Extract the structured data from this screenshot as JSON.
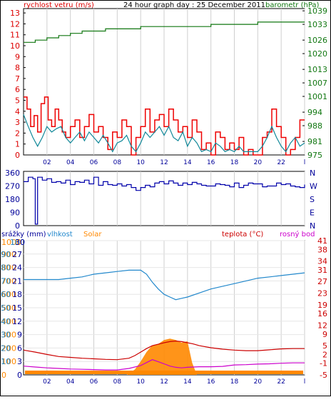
{
  "header": {
    "left_label": "rychlost vetru (m/s)",
    "title": "24 hour graph day : 25 December 2011",
    "right_label": "barometr (hPa)"
  },
  "colors": {
    "wind": "#dd0000",
    "gust": "#ee0000",
    "wind_avg": "#118899",
    "pressure": "#117711",
    "direction": "#0000aa",
    "humidity": "#2288cc",
    "solar": "#ff8800",
    "temperature": "#cc0000",
    "dewpoint": "#cc00cc",
    "rain": "#0033aa",
    "axis_dark": "#000099",
    "grid": "#cfcfcf"
  },
  "chart_data": [
    {
      "type": "line",
      "name": "wind-pressure",
      "x_ticks": [
        "02",
        "04",
        "06",
        "08",
        "10",
        "12",
        "14",
        "16",
        "18",
        "20",
        "22",
        "l"
      ],
      "left_axis": {
        "label": "rychlost vetru (m/s)",
        "ticks": [
          0,
          1,
          2,
          3,
          4,
          5,
          6,
          7,
          8,
          9,
          10,
          11,
          12,
          13
        ],
        "ylim": [
          0,
          13.4
        ]
      },
      "right_axis": {
        "label": "barometr (hPa)",
        "ticks": [
          975,
          981,
          988,
          994,
          1001,
          1007,
          1013,
          1020,
          1026,
          1033,
          1039
        ],
        "ylim": [
          975,
          1040
        ]
      },
      "series": [
        {
          "name": "rychlost vetru (m/s)",
          "role": "gust",
          "x": [
            0,
            0.3,
            0.6,
            0.9,
            1.2,
            1.5,
            1.8,
            2.1,
            2.4,
            2.7,
            3.0,
            3.3,
            3.6,
            4.0,
            4.4,
            4.8,
            5.2,
            5.6,
            6.0,
            6.4,
            6.8,
            7.2,
            7.6,
            8.0,
            8.4,
            8.8,
            9.2,
            9.6,
            10.0,
            10.4,
            10.8,
            11.2,
            11.6,
            12.0,
            12.4,
            12.8,
            13.2,
            13.6,
            14.0,
            14.4,
            14.8,
            15.2,
            15.6,
            16.0,
            16.4,
            16.8,
            17.2,
            17.6,
            18.0,
            18.4,
            18.8,
            19.2,
            19.6,
            20.0,
            20.4,
            20.8,
            21.2,
            21.6,
            22.0,
            22.4,
            22.8,
            23.2,
            23.6,
            24.0
          ],
          "values": [
            5.3,
            4.2,
            2.6,
            3.6,
            2.1,
            4.7,
            5.3,
            3.2,
            2.6,
            4.2,
            3.2,
            2.1,
            1.6,
            2.6,
            3.2,
            1.6,
            2.6,
            3.7,
            2.1,
            2.6,
            1.6,
            0.5,
            2.1,
            1.6,
            3.2,
            2.6,
            0,
            1.6,
            2.6,
            4.2,
            2.1,
            3.2,
            3.7,
            2.6,
            4.2,
            3.2,
            2.1,
            2.6,
            1.6,
            3.2,
            2.1,
            0.5,
            1.1,
            0,
            2.1,
            1.6,
            0.5,
            1.1,
            0.5,
            1.6,
            0,
            0.5,
            0,
            0,
            1.6,
            2.1,
            4.2,
            2.6,
            1.6,
            0,
            0.5,
            1.6,
            3.2,
            3.2
          ]
        },
        {
          "name": "wind average",
          "role": "average",
          "x": [
            0,
            0.4,
            0.8,
            1.2,
            1.6,
            2.0,
            2.4,
            2.8,
            3.2,
            3.6,
            4.0,
            4.4,
            4.8,
            5.2,
            5.6,
            6.0,
            6.4,
            6.8,
            7.2,
            7.6,
            8.0,
            8.4,
            8.8,
            9.2,
            9.6,
            10.0,
            10.4,
            10.8,
            11.2,
            11.6,
            12.0,
            12.4,
            12.8,
            13.2,
            13.6,
            14.0,
            14.4,
            14.8,
            15.2,
            15.6,
            16.0,
            16.4,
            16.8,
            17.2,
            17.6,
            18.0,
            18.4,
            18.8,
            19.2,
            19.6,
            20.0,
            20.4,
            20.8,
            21.2,
            21.6,
            22.0,
            22.4,
            22.8,
            23.2,
            23.6,
            24.0
          ],
          "values": [
            3.7,
            2.6,
            1.6,
            0.8,
            1.6,
            2.6,
            2.1,
            2.4,
            2.6,
            1.6,
            1.1,
            1.6,
            2.1,
            1.3,
            2.1,
            1.6,
            1.1,
            1.8,
            1.1,
            0.3,
            1.1,
            1.3,
            1.8,
            0.8,
            0.3,
            1.1,
            2.1,
            1.6,
            2.1,
            2.6,
            1.8,
            2.6,
            1.6,
            1.3,
            2.1,
            0.8,
            1.6,
            1.1,
            0.3,
            0.5,
            0.3,
            1.1,
            0.8,
            0.3,
            0.5,
            0.3,
            0.8,
            0.3,
            0.3,
            0.3,
            0.3,
            0.8,
            1.6,
            2.6,
            1.6,
            0.8,
            0.3,
            1.1,
            1.6,
            0.8,
            1.1
          ]
        },
        {
          "name": "barometr (hPa)",
          "role": "pressure",
          "axis": "right",
          "x": [
            0,
            1,
            2,
            3,
            4,
            5,
            6,
            7,
            8,
            9,
            10,
            11,
            12,
            13,
            14,
            15,
            16,
            17,
            18,
            19,
            20,
            21,
            22,
            23,
            24
          ],
          "values": [
            1025,
            1026,
            1027,
            1028,
            1029,
            1030,
            1030,
            1031,
            1031,
            1031,
            1032,
            1032,
            1032,
            1032,
            1032,
            1032,
            1033,
            1033,
            1033,
            1033,
            1034,
            1034,
            1034,
            1034,
            1034
          ]
        }
      ]
    },
    {
      "type": "line",
      "name": "wind-direction",
      "x_ticks": [
        "02",
        "04",
        "06",
        "08",
        "10",
        "12",
        "14",
        "16",
        "18",
        "20",
        "22",
        "l"
      ],
      "left_axis": {
        "ticks": [
          0,
          90,
          180,
          270,
          360
        ],
        "ylim": [
          0,
          370
        ]
      },
      "right_axis": {
        "ticks": [
          "N",
          "W",
          "S",
          "E",
          "N"
        ]
      },
      "series": [
        {
          "name": "wind direction",
          "role": "direction",
          "x": [
            0,
            0.4,
            0.8,
            1.0,
            1.2,
            1.6,
            2.0,
            2.4,
            2.8,
            3.2,
            3.6,
            4.0,
            4.4,
            4.8,
            5.2,
            5.6,
            6.0,
            6.4,
            6.8,
            7.2,
            7.6,
            8.0,
            8.4,
            8.8,
            9.2,
            9.6,
            10.0,
            10.4,
            10.8,
            11.2,
            11.6,
            12.0,
            12.4,
            12.8,
            13.2,
            13.6,
            14.0,
            14.4,
            14.8,
            15.2,
            15.6,
            16.0,
            16.4,
            16.8,
            17.2,
            17.6,
            18.0,
            18.4,
            18.8,
            19.2,
            19.6,
            20.0,
            20.4,
            20.8,
            21.2,
            21.6,
            22.0,
            22.4,
            22.8,
            23.2,
            23.6,
            24.0
          ],
          "values": [
            300,
            330,
            320,
            10,
            330,
            310,
            320,
            295,
            300,
            290,
            310,
            280,
            300,
            295,
            310,
            285,
            330,
            275,
            300,
            280,
            275,
            285,
            270,
            280,
            260,
            240,
            260,
            275,
            265,
            290,
            300,
            285,
            305,
            290,
            275,
            290,
            280,
            295,
            285,
            275,
            270,
            270,
            285,
            280,
            275,
            265,
            290,
            260,
            275,
            290,
            285,
            285,
            265,
            270,
            270,
            290,
            280,
            285,
            270,
            265,
            260,
            280
          ]
        }
      ]
    },
    {
      "type": "line",
      "name": "rain-humidity-solar-temperature",
      "x_ticks": [
        "02",
        "04",
        "06",
        "08",
        "10",
        "12",
        "14",
        "16",
        "18",
        "20",
        "22",
        "l"
      ],
      "legend": [
        "srážky (mm)",
        "vlhkost",
        "Solar",
        "teplota (°C)",
        "rosný bod"
      ],
      "axis_solar": {
        "ticks": [
          0,
          100,
          200,
          300,
          400,
          500,
          600,
          700,
          800,
          900,
          1000
        ],
        "ylim": [
          0,
          1000
        ]
      },
      "axis_rain": {
        "ticks": [
          0,
          3,
          6,
          9,
          12,
          15,
          18,
          21,
          24,
          27,
          30
        ],
        "ylim": [
          0,
          30
        ]
      },
      "axis_humidity": {
        "ticks": [
          0,
          10,
          20,
          30,
          40,
          50,
          60,
          70,
          80,
          90,
          100
        ],
        "ylim": [
          0,
          100
        ]
      },
      "axis_temperature": {
        "label": "teplota (°C)",
        "ticks": [
          -5,
          -1,
          2,
          5,
          9,
          12,
          16,
          19,
          23,
          27,
          31,
          34,
          38,
          41
        ],
        "ylim": [
          -5,
          41
        ]
      },
      "series": [
        {
          "name": "vlhkost",
          "role": "humidity",
          "x": [
            0,
            1,
            2,
            3,
            4,
            5,
            6,
            7,
            8,
            9,
            9.5,
            10,
            10.5,
            11,
            11.5,
            12,
            12.5,
            13,
            13.5,
            14,
            15,
            16,
            17,
            18,
            19,
            20,
            21,
            22,
            23,
            24
          ],
          "values": [
            71,
            71,
            71,
            71,
            72,
            73,
            75,
            76,
            77,
            78,
            78,
            78,
            75,
            69,
            64,
            60,
            58,
            56,
            57,
            58,
            61,
            64,
            66,
            68,
            70,
            72,
            73,
            74,
            75,
            76
          ]
        },
        {
          "name": "teplota (°C)",
          "role": "temperature",
          "x": [
            0,
            1,
            2,
            3,
            4,
            5,
            6,
            7,
            8,
            9,
            9.5,
            10,
            10.5,
            11,
            11.5,
            12,
            12.5,
            13,
            13.5,
            14,
            14.5,
            15,
            16,
            17,
            18,
            19,
            20,
            21,
            22,
            23,
            24
          ],
          "values": [
            3.5,
            2.8,
            2.0,
            1.3,
            1.0,
            0.7,
            0.5,
            0.3,
            0.2,
            0.7,
            1.6,
            2.8,
            4.0,
            5.0,
            5.5,
            6.0,
            6.4,
            6.6,
            6.4,
            6.0,
            5.6,
            5.0,
            4.3,
            3.8,
            3.5,
            3.3,
            3.3,
            3.6,
            3.9,
            4.0,
            4.0
          ]
        },
        {
          "name": "rosný bod",
          "role": "dewpoint",
          "x": [
            0,
            1,
            2,
            3,
            4,
            5,
            6,
            7,
            8,
            9,
            10,
            10.5,
            11,
            11.5,
            12,
            12.5,
            13,
            13.5,
            14,
            15,
            16,
            17,
            18,
            19,
            20,
            21,
            22,
            23,
            24
          ],
          "values": [
            -2.0,
            -2.3,
            -2.6,
            -2.8,
            -3.0,
            -3.1,
            -3.2,
            -3.3,
            -3.3,
            -2.8,
            -1.8,
            -0.8,
            0.2,
            -0.5,
            -1.2,
            -2.0,
            -2.4,
            -2.6,
            -2.4,
            -2.2,
            -2.2,
            -2.1,
            -1.6,
            -1.5,
            -1.3,
            -1.2,
            -1.0,
            -0.9,
            -0.9
          ]
        },
        {
          "name": "Solar",
          "role": "solar",
          "x": [
            8.8,
            9.5,
            10,
            10.5,
            11,
            11.5,
            12,
            12.5,
            13,
            13.5,
            14,
            14.4,
            14.8
          ],
          "values": [
            0,
            40,
            100,
            170,
            220,
            230,
            260,
            270,
            260,
            240,
            250,
            90,
            0
          ]
        },
        {
          "name": "srážky (mm)",
          "role": "rain",
          "x": [
            0,
            24
          ],
          "values": [
            0,
            0
          ]
        }
      ]
    }
  ]
}
